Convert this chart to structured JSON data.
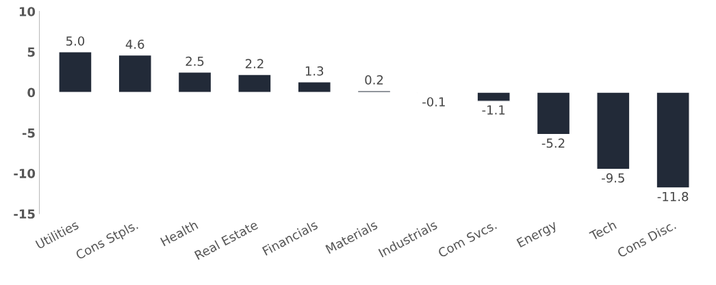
{
  "chart_data": {
    "type": "bar",
    "categories": [
      "Utilities",
      "Cons Stpls.",
      "Health",
      "Real Estate",
      "Financials",
      "Materials",
      "Industrials",
      "Com Svcs.",
      "Energy",
      "Tech",
      "Cons Disc."
    ],
    "values": [
      5.0,
      4.6,
      2.5,
      2.2,
      1.3,
      0.2,
      -0.1,
      -1.1,
      -5.2,
      -9.5,
      -11.8
    ],
    "value_labels": [
      "5.0",
      "4.6",
      "2.5",
      "2.2",
      "1.3",
      "0.2",
      "-0.1",
      "-1.1",
      "-5.2",
      "-9.5",
      "-11.8"
    ],
    "color": "#222a38",
    "ylim": [
      -15,
      10
    ],
    "yticks": [
      {
        "value": -15,
        "label": "-15"
      },
      {
        "value": -10,
        "label": "-10"
      },
      {
        "value": -5,
        "label": "-5"
      },
      0,
      5,
      10
    ],
    "grid": false,
    "legend": false
  }
}
